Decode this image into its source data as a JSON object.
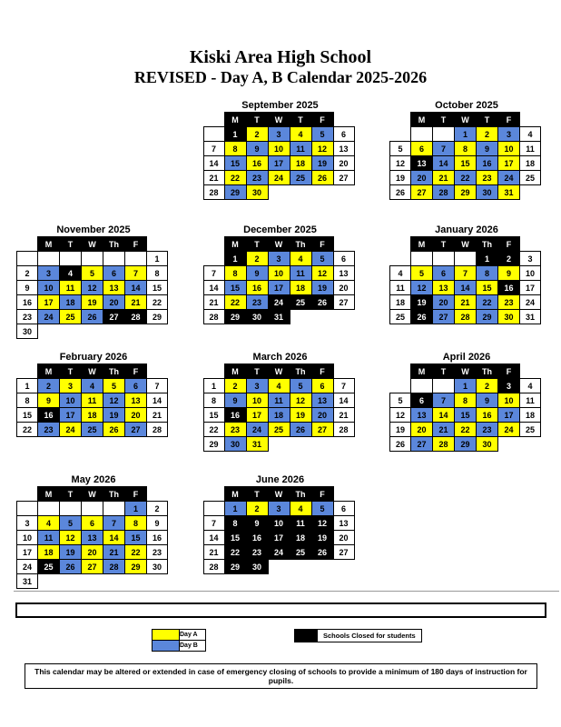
{
  "title": {
    "line1": "Kiski Area High School",
    "line2": "REVISED - Day A, B Calendar 2025-2026"
  },
  "colors": {
    "day_a_yellow": "#FFFF00",
    "day_b_blue": "#5B87DB",
    "closed_black": "#000000",
    "header_bg": "#000000",
    "header_text": "#FFFFFF",
    "cell_border": "#000000"
  },
  "cell_codes": {
    "A": "Day A (yellow)",
    "B": "Day B (blue)",
    "K": "Schools Closed for students (black)",
    "N": "non-school day (white)",
    "E": "empty bordered cell",
    "X": "no cell drawn"
  },
  "months": [
    {
      "name": "September 2025",
      "row": 1,
      "col": 2,
      "headers": [
        "M",
        "T",
        "W",
        "T",
        "F"
      ],
      "weeks": [
        [
          "E",
          "1K",
          "2A",
          "3B",
          "4A",
          "5B",
          "6N"
        ],
        [
          "7N",
          "8A",
          "9B",
          "10A",
          "11B",
          "12A",
          "13N"
        ],
        [
          "14N",
          "15B",
          "16A",
          "17B",
          "18A",
          "19B",
          "20N"
        ],
        [
          "21N",
          "22A",
          "23B",
          "24A",
          "25B",
          "26A",
          "27N"
        ],
        [
          "28N",
          "29B",
          "30A",
          "X",
          "X",
          "X",
          "X"
        ]
      ]
    },
    {
      "name": "October 2025",
      "row": 1,
      "col": 3,
      "headers": [
        "M",
        "T",
        "W",
        "T",
        "F"
      ],
      "weeks": [
        [
          "X",
          "E",
          "E",
          "1B",
          "2A",
          "3B",
          "4N"
        ],
        [
          "5N",
          "6A",
          "7B",
          "8A",
          "9B",
          "10A",
          "11N"
        ],
        [
          "12N",
          "13K",
          "14B",
          "15A",
          "16B",
          "17A",
          "18N"
        ],
        [
          "19N",
          "20B",
          "21A",
          "22B",
          "23A",
          "24B",
          "25N"
        ],
        [
          "26N",
          "27A",
          "28B",
          "29A",
          "30B",
          "31A",
          "X"
        ]
      ]
    },
    {
      "name": "November 2025",
      "row": 2,
      "col": 1,
      "headers": [
        "M",
        "T",
        "W",
        "Th",
        "F"
      ],
      "weeks": [
        [
          "E",
          "E",
          "E",
          "E",
          "E",
          "E",
          "1N"
        ],
        [
          "2N",
          "3B",
          "4K",
          "5A",
          "6B",
          "7A",
          "8N"
        ],
        [
          "9N",
          "10B",
          "11A",
          "12B",
          "13A",
          "14B",
          "15N"
        ],
        [
          "16N",
          "17A",
          "18B",
          "19A",
          "20B",
          "21A",
          "22N"
        ],
        [
          "23N",
          "24B",
          "25A",
          "26B",
          "27K",
          "28K",
          "29N"
        ],
        [
          "30N",
          "X",
          "X",
          "X",
          "X",
          "X",
          "X"
        ]
      ]
    },
    {
      "name": "December 2025",
      "row": 2,
      "col": 2,
      "headers": [
        "M",
        "T",
        "W",
        "Th",
        "F"
      ],
      "weeks": [
        [
          "X",
          "1K",
          "2A",
          "3B",
          "4A",
          "5B",
          "6N"
        ],
        [
          "7N",
          "8A",
          "9B",
          "10A",
          "11B",
          "12A",
          "13N"
        ],
        [
          "14N",
          "15B",
          "16A",
          "17B",
          "18A",
          "19B",
          "20N"
        ],
        [
          "21N",
          "22A",
          "23B",
          "24K",
          "25K",
          "26K",
          "27N"
        ],
        [
          "28N",
          "29K",
          "30K",
          "31K",
          "X",
          "X",
          "X"
        ]
      ]
    },
    {
      "name": "January 2026",
      "row": 2,
      "col": 3,
      "headers": [
        "M",
        "T",
        "W",
        "Th",
        "F"
      ],
      "weeks": [
        [
          "X",
          "E",
          "E",
          "E",
          "1K",
          "2K",
          "3N"
        ],
        [
          "4N",
          "5A",
          "6B",
          "7A",
          "8B",
          "9A",
          "10N"
        ],
        [
          "11N",
          "12B",
          "13A",
          "14B",
          "15A",
          "16K",
          "17N"
        ],
        [
          "18N",
          "19K",
          "20B",
          "21A",
          "22B",
          "23A",
          "24N"
        ],
        [
          "25N",
          "26K",
          "27B",
          "28A",
          "29B",
          "30A",
          "31N"
        ]
      ]
    },
    {
      "name": "February 2026",
      "row": 3,
      "col": 1,
      "headers": [
        "M",
        "T",
        "W",
        "Th",
        "F"
      ],
      "weeks": [
        [
          "1N",
          "2B",
          "3A",
          "4B",
          "5A",
          "6B",
          "7N"
        ],
        [
          "8N",
          "9A",
          "10B",
          "11A",
          "12B",
          "13A",
          "14N"
        ],
        [
          "15N",
          "16K",
          "17B",
          "18A",
          "19B",
          "20A",
          "21N"
        ],
        [
          "22N",
          "23B",
          "24A",
          "25B",
          "26A",
          "27B",
          "28N"
        ]
      ]
    },
    {
      "name": "March 2026",
      "row": 3,
      "col": 2,
      "headers": [
        "M",
        "T",
        "W",
        "Th",
        "F"
      ],
      "weeks": [
        [
          "1N",
          "2A",
          "3B",
          "4A",
          "5B",
          "6A",
          "7N"
        ],
        [
          "8N",
          "9B",
          "10A",
          "11B",
          "12A",
          "13B",
          "14N"
        ],
        [
          "15N",
          "16K",
          "17A",
          "18B",
          "19A",
          "20B",
          "21N"
        ],
        [
          "22N",
          "23A",
          "24B",
          "25A",
          "26B",
          "27A",
          "28N"
        ],
        [
          "29N",
          "30B",
          "31A",
          "X",
          "X",
          "X",
          "X"
        ]
      ]
    },
    {
      "name": "April 2026",
      "row": 3,
      "col": 3,
      "headers": [
        "M",
        "T",
        "W",
        "Th",
        "F"
      ],
      "weeks": [
        [
          "X",
          "E",
          "E",
          "1B",
          "2A",
          "3K",
          "4N"
        ],
        [
          "5N",
          "6K",
          "7B",
          "8A",
          "9B",
          "10A",
          "11N"
        ],
        [
          "12N",
          "13B",
          "14A",
          "15B",
          "16A",
          "17B",
          "18N"
        ],
        [
          "19N",
          "20A",
          "21B",
          "22A",
          "23B",
          "24A",
          "25N"
        ],
        [
          "26N",
          "27B",
          "28A",
          "29B",
          "30A",
          "X",
          "X"
        ]
      ]
    },
    {
      "name": "May 2026",
      "row": 4,
      "col": 1,
      "headers": [
        "M",
        "T",
        "W",
        "Th",
        "F"
      ],
      "weeks": [
        [
          "E",
          "E",
          "E",
          "E",
          "E",
          "1B",
          "2N"
        ],
        [
          "3N",
          "4A",
          "5B",
          "6A",
          "7B",
          "8A",
          "9N"
        ],
        [
          "10N",
          "11B",
          "12A",
          "13B",
          "14A",
          "15B",
          "16N"
        ],
        [
          "17N",
          "18A",
          "19B",
          "20A",
          "21B",
          "22A",
          "23N"
        ],
        [
          "24N",
          "25K",
          "26B",
          "27A",
          "28B",
          "29A",
          "30N"
        ],
        [
          "31N",
          "X",
          "X",
          "X",
          "X",
          "X",
          "X"
        ]
      ]
    },
    {
      "name": "June 2026",
      "row": 4,
      "col": 2,
      "headers": [
        "M",
        "T",
        "W",
        "Th",
        "F"
      ],
      "weeks": [
        [
          "E",
          "1B",
          "2A",
          "3B",
          "4A",
          "5B",
          "6N"
        ],
        [
          "7N",
          "8K",
          "9K",
          "10K",
          "11K",
          "12K",
          "13N"
        ],
        [
          "14N",
          "15K",
          "16K",
          "17K",
          "18K",
          "19K",
          "20N"
        ],
        [
          "21N",
          "22K",
          "23K",
          "24K",
          "25K",
          "26K",
          "27N"
        ],
        [
          "28N",
          "29K",
          "30K",
          "X",
          "X",
          "X",
          "X"
        ]
      ]
    }
  ],
  "legend": {
    "day_a": "Day A",
    "day_b": "Day B",
    "closed": "Schools Closed for students"
  },
  "footer": {
    "disclaimer": "This calendar may be altered or extended in case of emergency closing of schools to provide a minimum of 180 days of instruction for pupils."
  }
}
